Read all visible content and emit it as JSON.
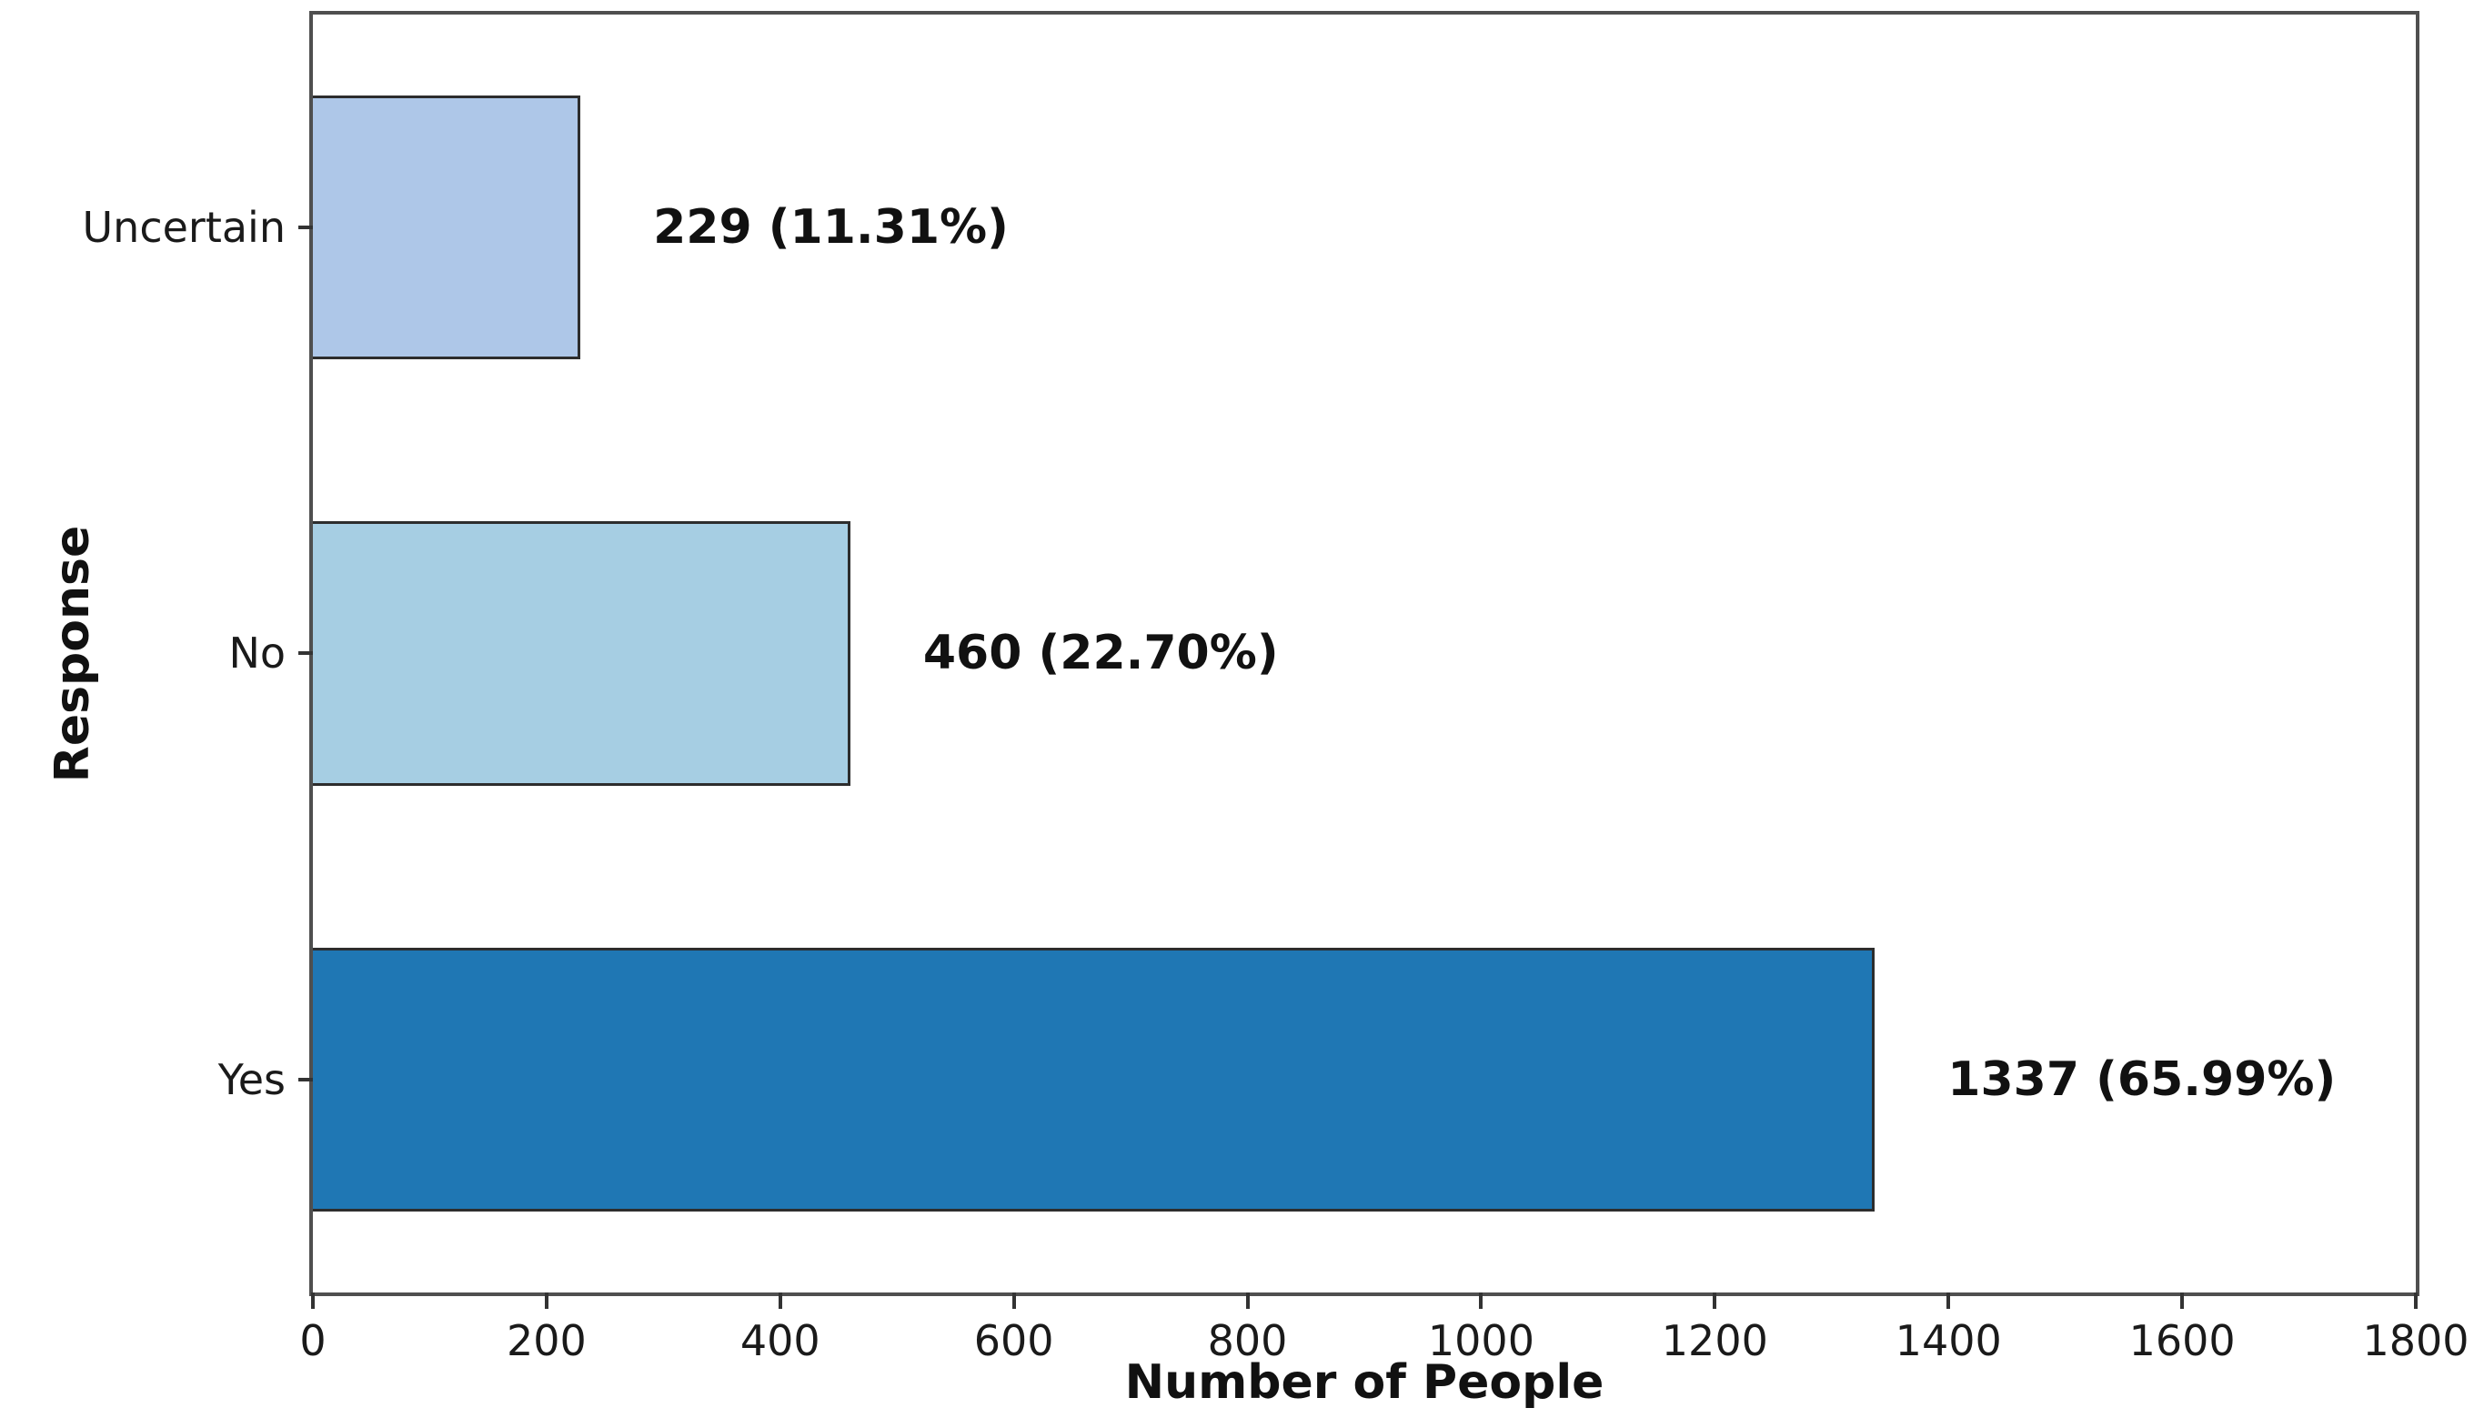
{
  "chart_data": {
    "type": "bar",
    "orientation": "horizontal",
    "title": "",
    "xlabel": "Number of People",
    "ylabel": "Response",
    "categories": [
      "Uncertain",
      "No",
      "Yes"
    ],
    "values": [
      229,
      460,
      1337
    ],
    "percentages": [
      11.31,
      22.7,
      65.99
    ],
    "value_labels": [
      "229 (11.31%)",
      "460 (22.70%)",
      "1337 (65.99%)"
    ],
    "bar_colors": [
      "#aec7e8",
      "#a6cee3",
      "#1f77b4"
    ],
    "bar_edge_color": "#2d2d2d",
    "spine_color": "#4f4f4f",
    "xlim": [
      0,
      1800
    ],
    "x_ticks": [
      0,
      200,
      400,
      600,
      800,
      1000,
      1200,
      1400,
      1600,
      1800
    ],
    "grid": false,
    "legend": "none",
    "background_color": "#ffffff"
  }
}
